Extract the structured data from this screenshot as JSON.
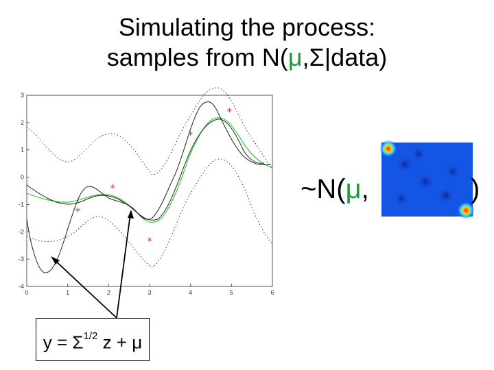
{
  "slide": {
    "title_line1": "Simulating the process:",
    "title_line2_prefix": "samples from N(",
    "title_line2_mu": "μ",
    "title_line2_suffix": ",Σ|data)"
  },
  "plot": {
    "x_ticks": [
      "0",
      "1",
      "2",
      "3",
      "4",
      "5",
      "6"
    ],
    "y_ticks": [
      "3",
      "2",
      "1",
      "0",
      "-1",
      "-2",
      "-3",
      "-4"
    ],
    "xlim": [
      0,
      6
    ],
    "ylim": [
      -4,
      3
    ],
    "observations": [
      {
        "x": 1.25,
        "y": -1.25
      },
      {
        "x": 2.1,
        "y": -0.4
      },
      {
        "x": 3.0,
        "y": -2.35
      },
      {
        "x": 4.0,
        "y": 1.55
      },
      {
        "x": 4.95,
        "y": 2.4
      }
    ],
    "colors": {
      "mean": "#33cc33",
      "samples": "#222222",
      "band": "#333333",
      "points": "#e02020"
    }
  },
  "distribution": {
    "prefix": "~N(",
    "mu": "μ",
    "comma": ",",
    "close": ")"
  },
  "formula": {
    "lhs": "y = Σ",
    "exponent": "1/2",
    "rhs": " z + μ"
  }
}
